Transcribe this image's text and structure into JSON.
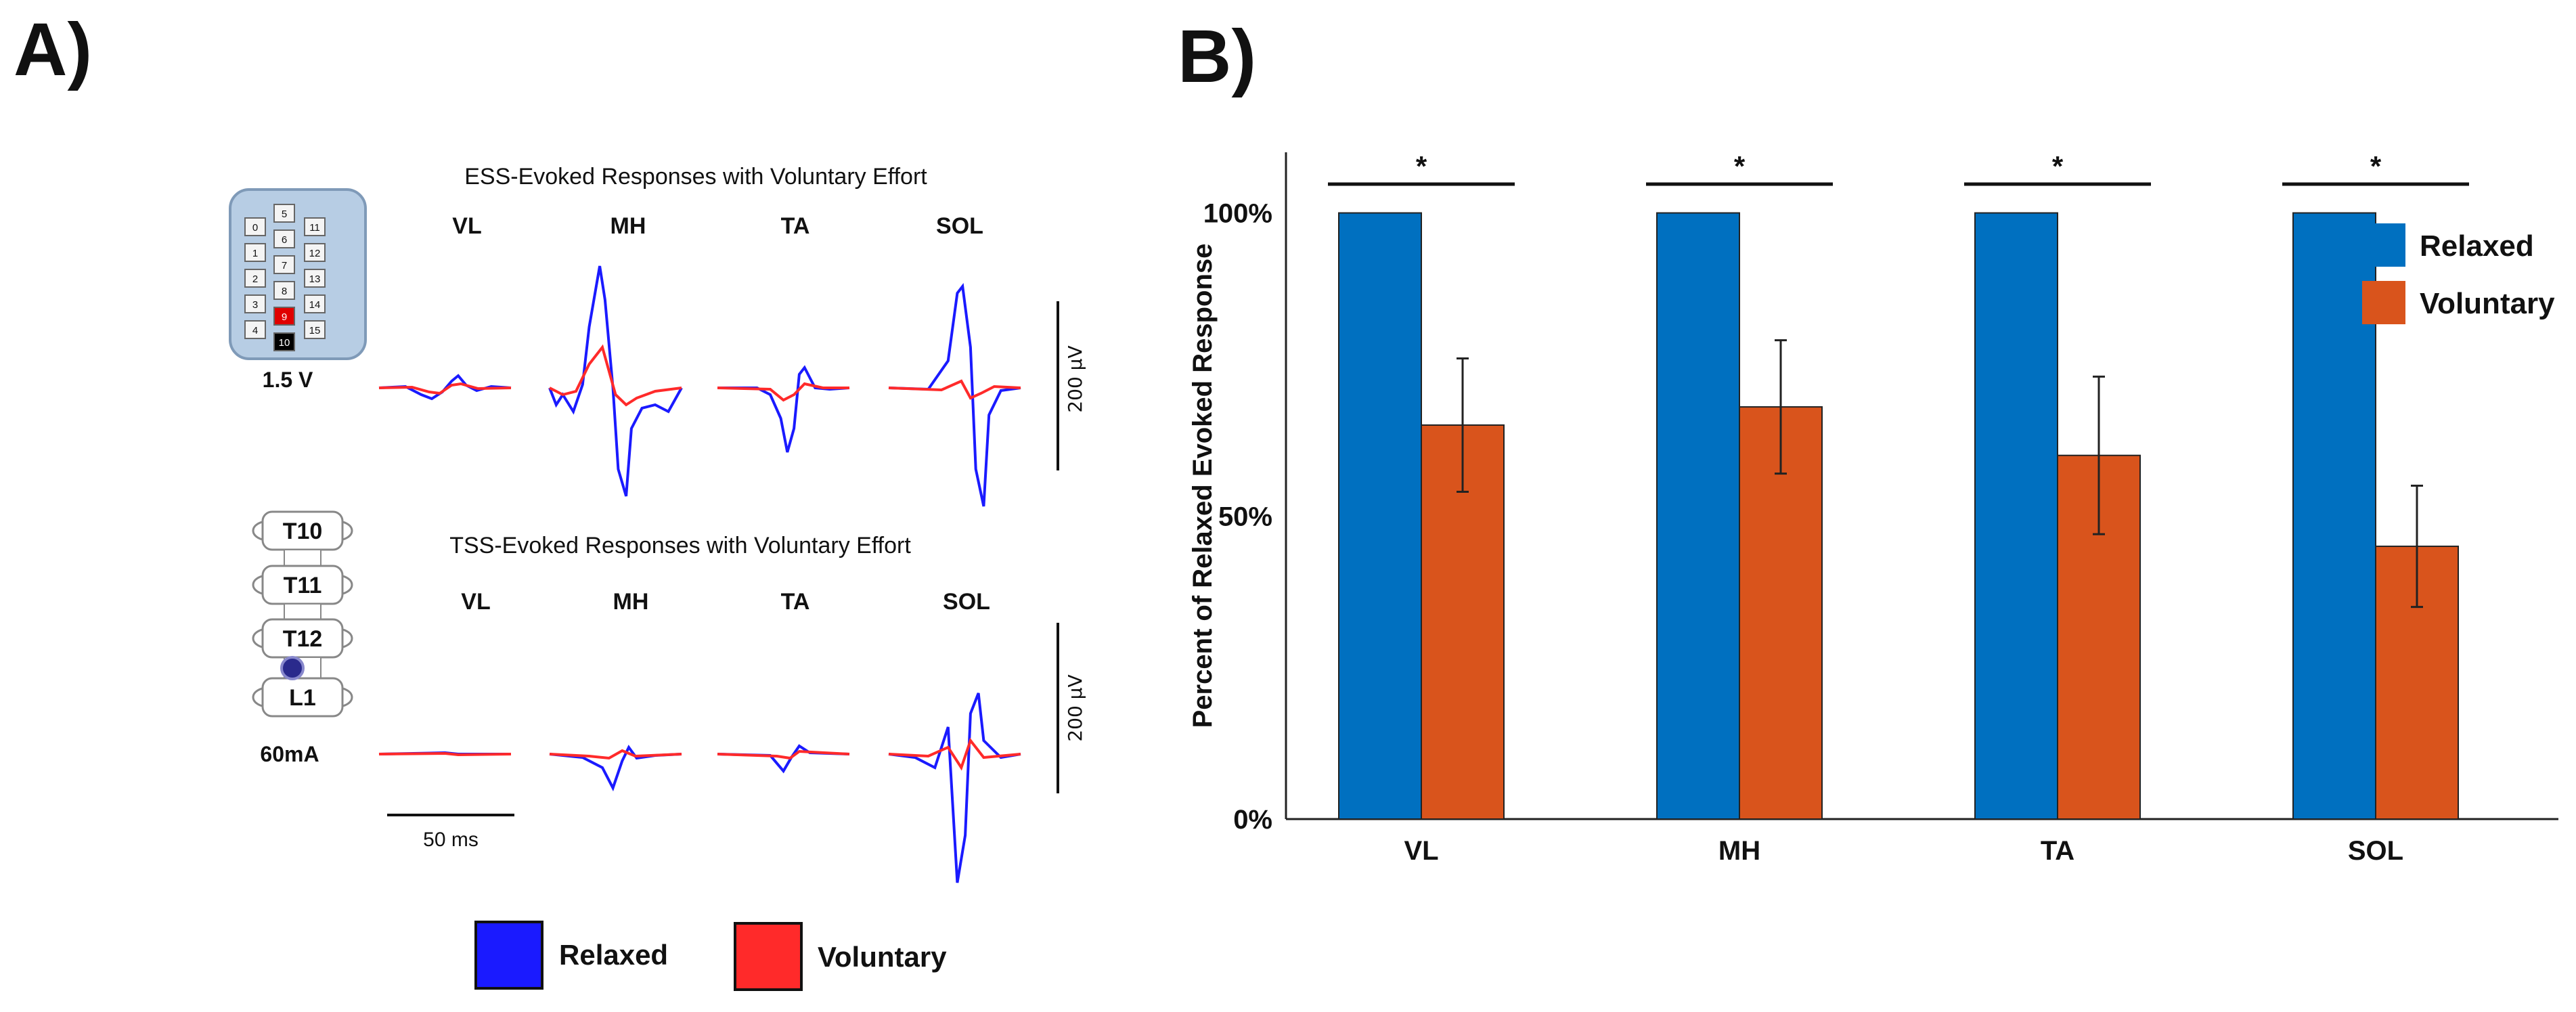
{
  "panels": {
    "a_label": "A)",
    "b_label": "B)"
  },
  "panel_a": {
    "ess_title": "ESS-Evoked Responses with Voluntary Effort",
    "tss_title": "TSS-Evoked Responses with Voluntary Effort",
    "muscles": [
      "VL",
      "MH",
      "TA",
      "SOL"
    ],
    "ess_voltage": "1.5 V",
    "tss_current": "60mA",
    "scale_bar_amp": "200 µV",
    "scale_bar_time": "50 ms",
    "electrode_numbers": [
      "0",
      "1",
      "2",
      "3",
      "4",
      "5",
      "6",
      "7",
      "8",
      "9",
      "10",
      "11",
      "12",
      "13",
      "14",
      "15"
    ],
    "active_electrode_anode": "9",
    "active_electrode_cathode": "10",
    "vertebrae": [
      "T10",
      "T11",
      "T12",
      "L1"
    ],
    "legend": [
      {
        "label": "Relaxed",
        "color": "#1a1aff"
      },
      {
        "label": "Voluntary",
        "color": "#ff2a2a"
      }
    ]
  },
  "chart_data": {
    "type": "bar",
    "title": "",
    "categories": [
      "VL",
      "MH",
      "TA",
      "SOL"
    ],
    "series": [
      {
        "name": "Relaxed",
        "values": [
          100,
          100,
          100,
          100
        ],
        "color": "#0070c0"
      },
      {
        "name": "Voluntary",
        "values": [
          65,
          68,
          60,
          45
        ],
        "error": [
          11,
          11,
          13,
          10
        ],
        "color": "#d9541c"
      }
    ],
    "significance": [
      "*",
      "*",
      "*",
      "*"
    ],
    "ylabel": "Percent of Relaxed Evoked Response",
    "xlabel": "",
    "ylim": [
      0,
      110
    ],
    "yticks": [
      0,
      50,
      100
    ],
    "ytick_labels": [
      "0%",
      "50%",
      "100%"
    ],
    "legend_position": "top-right",
    "grid": false
  }
}
